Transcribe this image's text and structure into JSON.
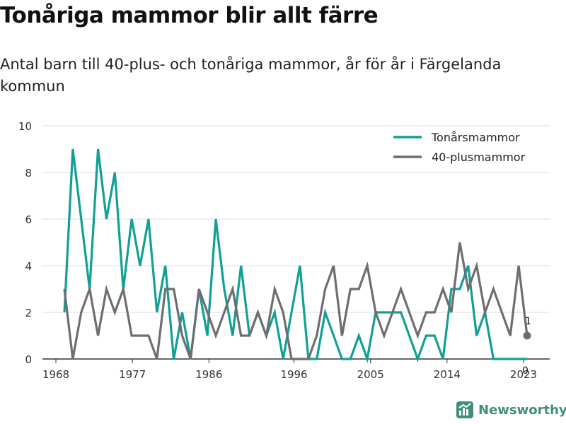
{
  "title": "Tonåriga mammor blir allt färre",
  "subtitle": "Antal barn till 40-plus- och tonåriga mammor, år för år i Färgelanda kommun",
  "brand": "Newsworthy",
  "colors": {
    "teen": "#11a095",
    "forty": "#6f6d72",
    "grid": "#dddddd",
    "axis": "#333333"
  },
  "chart_data": {
    "type": "line",
    "x": [
      1968,
      1969,
      1970,
      1971,
      1972,
      1973,
      1974,
      1975,
      1976,
      1977,
      1978,
      1979,
      1980,
      1981,
      1982,
      1983,
      1984,
      1985,
      1986,
      1987,
      1988,
      1989,
      1990,
      1991,
      1992,
      1993,
      1994,
      1995,
      1996,
      1997,
      1998,
      1999,
      2000,
      2001,
      2002,
      2003,
      2004,
      2005,
      2006,
      2007,
      2008,
      2009,
      2010,
      2011,
      2012,
      2013,
      2014,
      2015,
      2016,
      2017,
      2018,
      2019,
      2020,
      2021,
      2022,
      2023
    ],
    "x_ticks": [
      1968,
      1977,
      1986,
      1996,
      2005,
      2014,
      2023
    ],
    "x_tick_labels": [
      "1968",
      "1977",
      "1986",
      "1996",
      "2005",
      "2014",
      "2023"
    ],
    "y_ticks": [
      0,
      2,
      4,
      6,
      8,
      10
    ],
    "ylim": [
      0,
      10
    ],
    "legend_position": "top-right",
    "grid": true,
    "series": [
      {
        "name": "Tonårsmammor",
        "color": "#11a095",
        "values": [
          2,
          9,
          6,
          3,
          9,
          6,
          8,
          3,
          6,
          4,
          6,
          2,
          4,
          0,
          2,
          0,
          3,
          1,
          6,
          3,
          1,
          4,
          1,
          2,
          1,
          2,
          0,
          2,
          4,
          0,
          0,
          2,
          1,
          0,
          0,
          1,
          0,
          2,
          2,
          2,
          2,
          1,
          0,
          1,
          1,
          0,
          3,
          3,
          4,
          1,
          2,
          0,
          0,
          0,
          0,
          0
        ]
      },
      {
        "name": "40-plusmammor",
        "color": "#6f6d72",
        "values": [
          3,
          0,
          2,
          3,
          1,
          3,
          2,
          3,
          1,
          1,
          1,
          0,
          3,
          3,
          1,
          0,
          3,
          2,
          1,
          2,
          3,
          1,
          1,
          2,
          1,
          3,
          2,
          0,
          0,
          0,
          1,
          3,
          4,
          1,
          3,
          3,
          4,
          2,
          1,
          2,
          3,
          2,
          1,
          2,
          2,
          3,
          2,
          5,
          3,
          4,
          2,
          3,
          2,
          1,
          4,
          1
        ]
      }
    ],
    "end_labels": {
      "forty": "1",
      "teen": "0"
    }
  }
}
